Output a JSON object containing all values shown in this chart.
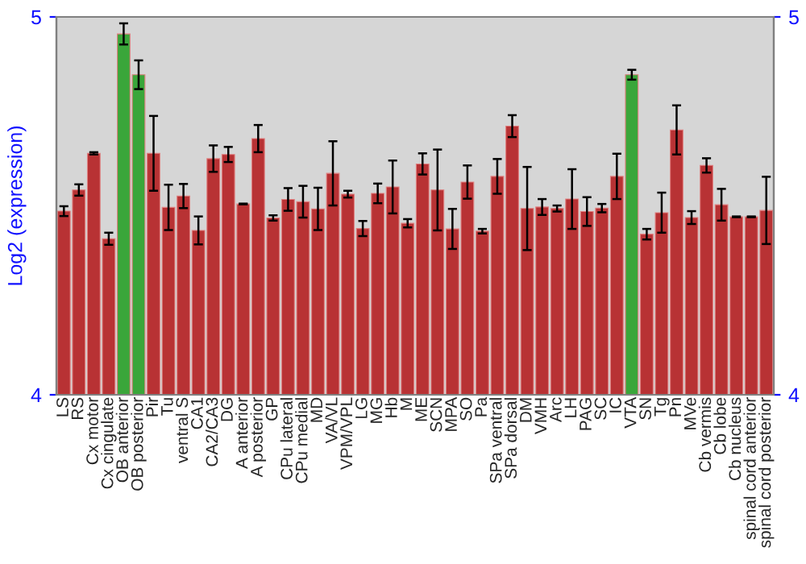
{
  "chart_data": {
    "type": "bar",
    "ylabel": "Log2 (expression)",
    "categories": [
      "LS",
      "RS",
      "Cx motor",
      "Cx cingulate",
      "OB anterior",
      "OB posterior",
      "Pir",
      "Tu",
      "ventral S",
      "CA1",
      "CA2/CA3",
      "DG",
      "A anterior",
      "A posterior",
      "GP",
      "CPu lateral",
      "CPu medial",
      "MD",
      "VA/VL",
      "VPM/VPL",
      "LG",
      "MG",
      "Hb",
      "M",
      "ME",
      "SCN",
      "MPA",
      "SO",
      "Pa",
      "SPa ventral",
      "SPa dorsal",
      "DM",
      "VMH",
      "Arc",
      "LH",
      "PAG",
      "SC",
      "IC",
      "VTA",
      "SN",
      "Tg",
      "Pn",
      "MVe",
      "Cb vermis",
      "Cb lobe",
      "Cb nucleus",
      "spinal cord anterior",
      "spinal cord posterior"
    ],
    "values": [
      4.486,
      4.542,
      4.639,
      4.413,
      4.955,
      4.847,
      4.639,
      4.496,
      4.526,
      4.435,
      4.625,
      4.636,
      4.505,
      4.678,
      4.468,
      4.517,
      4.511,
      4.492,
      4.586,
      4.531,
      4.44,
      4.533,
      4.55,
      4.454,
      4.611,
      4.542,
      4.439,
      4.563,
      4.433,
      4.578,
      4.711,
      4.493,
      4.497,
      4.493,
      4.518,
      4.485,
      4.494,
      4.578,
      4.847,
      4.425,
      4.482,
      4.701,
      4.469,
      4.607,
      4.503,
      4.471,
      4.471,
      4.488
    ],
    "errors": [
      0.013,
      0.015,
      0.003,
      0.016,
      0.028,
      0.038,
      0.099,
      0.06,
      0.032,
      0.037,
      0.035,
      0.02,
      0.001,
      0.036,
      0.007,
      0.03,
      0.042,
      0.056,
      0.085,
      0.009,
      0.02,
      0.026,
      0.07,
      0.011,
      0.028,
      0.107,
      0.053,
      0.044,
      0.006,
      0.046,
      0.029,
      0.11,
      0.021,
      0.008,
      0.079,
      0.038,
      0.011,
      0.06,
      0.013,
      0.014,
      0.053,
      0.065,
      0.017,
      0.019,
      0.042,
      0.001,
      0.001,
      0.089
    ],
    "colors": [
      "#b83234",
      "#b83234",
      "#b83234",
      "#b83234",
      "#3aa63a",
      "#3aa63a",
      "#b83234",
      "#b83234",
      "#b83234",
      "#b83234",
      "#b83234",
      "#b83234",
      "#b83234",
      "#b83234",
      "#b83234",
      "#b83234",
      "#b83234",
      "#b83234",
      "#b83234",
      "#b83234",
      "#b83234",
      "#b83234",
      "#b83234",
      "#b83234",
      "#b83234",
      "#b83234",
      "#b83234",
      "#b83234",
      "#b83234",
      "#b83234",
      "#b83234",
      "#b83234",
      "#b83234",
      "#b83234",
      "#b83234",
      "#b83234",
      "#b83234",
      "#b83234",
      "#3aa63a",
      "#b83234",
      "#b83234",
      "#b83234",
      "#b83234",
      "#b83234",
      "#b83234",
      "#b83234",
      "#b83234",
      "#b83234"
    ],
    "ylim": [
      4,
      5
    ],
    "yticks": [
      4,
      5
    ],
    "y2lim": [
      4,
      5
    ],
    "y2ticks": [
      4,
      5
    ],
    "grid": false,
    "legend": false
  }
}
